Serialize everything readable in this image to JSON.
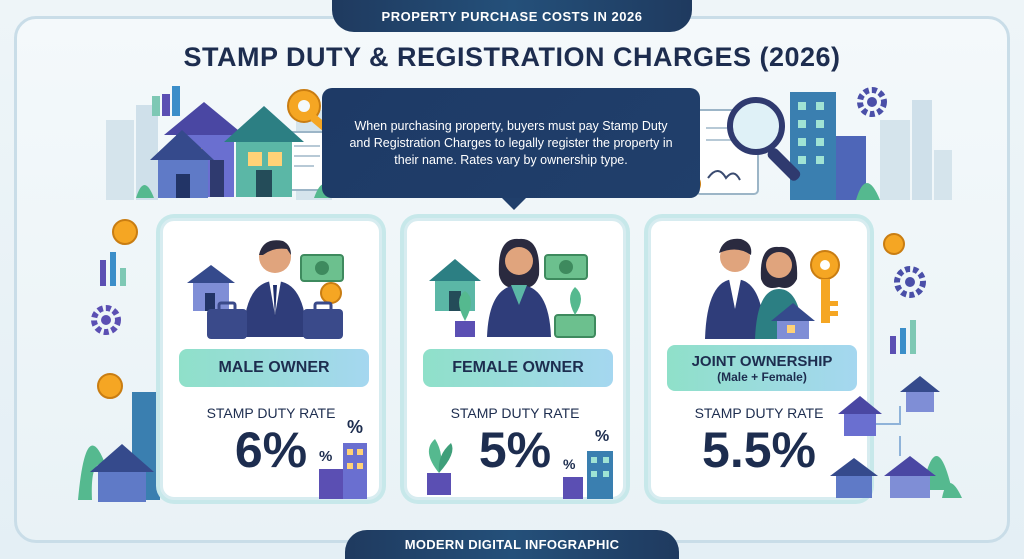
{
  "header_tab": "PROPERTY PURCHASE COSTS IN 2026",
  "title": "STAMP DUTY & REGISTRATION CHARGES (2026)",
  "intro": "When purchasing property, buyers must pay Stamp Duty and Registration Charges to legally register the property in their name. Rates vary by ownership type.",
  "cards": [
    {
      "label": "MALE OWNER",
      "rate_label": "STAMP DUTY RATE",
      "rate": "6%"
    },
    {
      "label": "FEMALE OWNER",
      "rate_label": "STAMP DUTY RATE",
      "rate": "5%"
    },
    {
      "label": "JOINT OWNERSHIP",
      "sublabel": "(Male + Female)",
      "rate_label": "STAMP DUTY RATE",
      "rate": "5.5%"
    }
  ],
  "footer_tab": "MODERN DIGITAL INFOGRAPHIC",
  "percent_glyph": "%",
  "colors": {
    "navy": "#1d2d4f",
    "teal": "#8fe0c9",
    "purple": "#5b4fb3",
    "gold": "#f5a623"
  }
}
